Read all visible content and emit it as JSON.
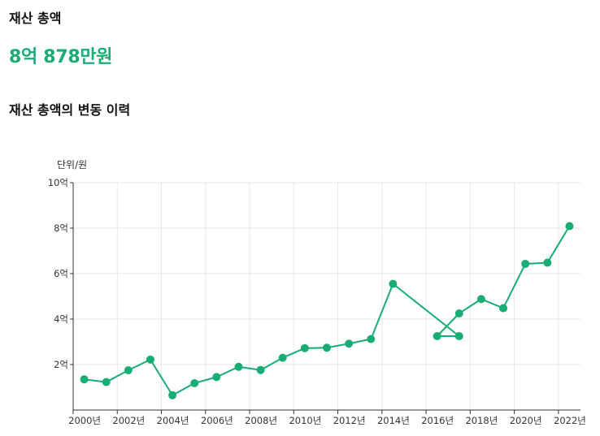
{
  "header": {
    "title": "재산 총액",
    "total_value": "8억 878만원",
    "history_title": "재산 총액의 변동 이력"
  },
  "colors": {
    "accent": "#17ad74",
    "grid": "#e9e9e9",
    "axis": "#333333"
  },
  "chart_data": {
    "type": "line",
    "unit_label": "단위/원",
    "ylim": [
      0,
      10
    ],
    "xlim": [
      1999.5,
      2022.5
    ],
    "grid": true,
    "y_ticks": [
      {
        "value": 2,
        "label": "2억"
      },
      {
        "value": 4,
        "label": "4억"
      },
      {
        "value": 6,
        "label": "6억"
      },
      {
        "value": 8,
        "label": "8억"
      },
      {
        "value": 10,
        "label": "10억"
      }
    ],
    "x_ticks": [
      {
        "value": 2000,
        "label": "2000년"
      },
      {
        "value": 2002,
        "label": "2002년"
      },
      {
        "value": 2004,
        "label": "2004년"
      },
      {
        "value": 2006,
        "label": "2006년"
      },
      {
        "value": 2008,
        "label": "2008년"
      },
      {
        "value": 2010,
        "label": "2010년"
      },
      {
        "value": 2012,
        "label": "2012년"
      },
      {
        "value": 2014,
        "label": "2014년"
      },
      {
        "value": 2016,
        "label": "2016년"
      },
      {
        "value": 2018,
        "label": "2018년"
      },
      {
        "value": 2020,
        "label": "2020년"
      },
      {
        "value": 2022,
        "label": "2022년"
      }
    ],
    "series": [
      {
        "points": [
          {
            "x": 2000,
            "y": 1.35
          },
          {
            "x": 2001,
            "y": 1.23
          },
          {
            "x": 2002,
            "y": 1.75
          },
          {
            "x": 2003,
            "y": 2.22
          },
          {
            "x": 2004,
            "y": 0.65
          },
          {
            "x": 2005,
            "y": 1.18
          },
          {
            "x": 2006,
            "y": 1.45
          },
          {
            "x": 2007,
            "y": 1.9
          },
          {
            "x": 2008,
            "y": 1.76
          },
          {
            "x": 2009,
            "y": 2.3
          },
          {
            "x": 2010,
            "y": 2.72
          },
          {
            "x": 2011,
            "y": 2.74
          },
          {
            "x": 2012,
            "y": 2.92
          },
          {
            "x": 2013,
            "y": 3.12
          },
          {
            "x": 2014,
            "y": 5.55
          },
          {
            "x": 2017,
            "y": 3.25
          },
          {
            "x": 2016,
            "y": 3.25
          },
          {
            "x": 2017,
            "y": 4.25
          },
          {
            "x": 2018,
            "y": 4.88
          },
          {
            "x": 2019,
            "y": 4.48
          },
          {
            "x": 2020,
            "y": 6.43
          },
          {
            "x": 2021,
            "y": 6.48
          },
          {
            "x": 2022,
            "y": 8.09
          }
        ]
      }
    ]
  }
}
